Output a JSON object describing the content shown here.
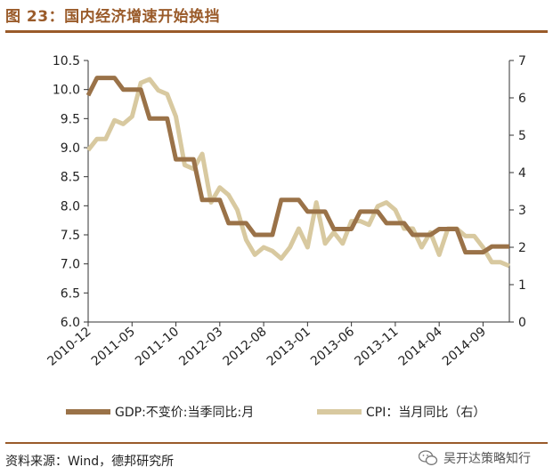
{
  "figure": {
    "title": "图 23：国内经济增速开始换挡",
    "source": "资料来源：Wind，德邦研究所",
    "watermark": "吴开达策略知行",
    "accent_color": "#9a5b2a"
  },
  "chart_data": {
    "type": "line",
    "x_ticks": [
      "2010-12",
      "2011-05",
      "2011-10",
      "2012-03",
      "2012-08",
      "2013-01",
      "2013-06",
      "2013-11",
      "2014-04",
      "2014-09"
    ],
    "y_left": {
      "min": 6.0,
      "max": 10.5,
      "ticks": [
        "6.0",
        "6.5",
        "7.0",
        "7.5",
        "8.0",
        "8.5",
        "9.0",
        "9.5",
        "10.0",
        "10.5"
      ]
    },
    "y_right": {
      "min": 0,
      "max": 7,
      "ticks": [
        "0",
        "1",
        "2",
        "3",
        "4",
        "5",
        "6",
        "7"
      ]
    },
    "series": [
      {
        "name": "GDP:不变价:当季同比:月",
        "axis": "left",
        "color": "#9a7248",
        "values": [
          9.9,
          10.2,
          10.2,
          10.2,
          10.0,
          10.0,
          10.0,
          9.5,
          9.5,
          9.5,
          8.8,
          8.8,
          8.8,
          8.1,
          8.1,
          8.1,
          7.7,
          7.7,
          7.7,
          7.5,
          7.5,
          7.5,
          8.1,
          8.1,
          8.1,
          7.9,
          7.9,
          7.9,
          7.6,
          7.6,
          7.6,
          7.9,
          7.9,
          7.9,
          7.7,
          7.7,
          7.7,
          7.5,
          7.5,
          7.5,
          7.6,
          7.6,
          7.6,
          7.2,
          7.2,
          7.2,
          7.3,
          7.3,
          7.3
        ]
      },
      {
        "name": "CPI：当月同比（右）",
        "axis": "right",
        "color": "#d8c9a0",
        "values": [
          4.6,
          4.9,
          4.9,
          5.4,
          5.3,
          5.5,
          6.4,
          6.5,
          6.2,
          6.1,
          5.5,
          4.2,
          4.1,
          4.5,
          3.2,
          3.6,
          3.4,
          3.0,
          2.2,
          1.8,
          2.0,
          1.9,
          1.7,
          2.0,
          2.5,
          2.0,
          3.2,
          2.1,
          2.4,
          2.1,
          2.7,
          2.7,
          2.6,
          3.1,
          3.2,
          3.0,
          2.5,
          2.5,
          2.0,
          2.4,
          1.8,
          2.5,
          2.5,
          2.3,
          2.3,
          2.0,
          1.6,
          1.6,
          1.5
        ]
      }
    ]
  }
}
